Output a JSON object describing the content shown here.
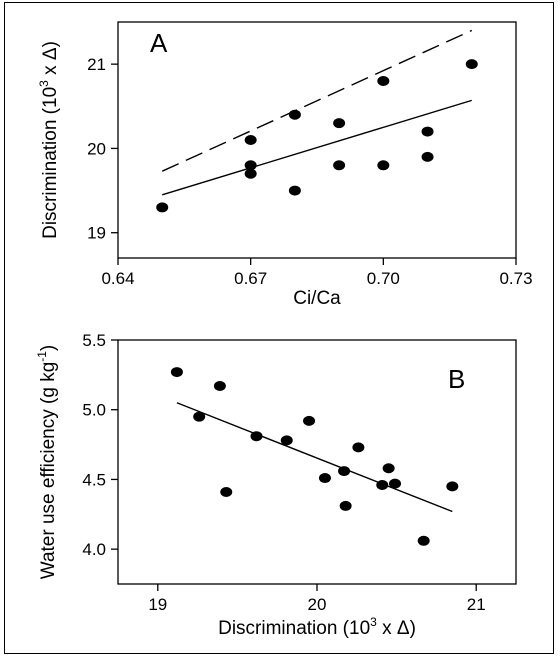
{
  "chart_data": [
    {
      "type": "scatter",
      "panel_label": "A",
      "xlabel": "Ci/Ca",
      "ylabel": "Discrimination (10",
      "ylabel_sup": "3",
      "ylabel_tail": " x Δ)",
      "xlim": [
        0.64,
        0.73
      ],
      "ylim": [
        18.7,
        21.5
      ],
      "xticks": [
        0.64,
        0.67,
        0.7,
        0.73
      ],
      "xtick_labels": [
        "0.64",
        "0.67",
        "0.70",
        "0.73"
      ],
      "yticks": [
        19,
        20,
        21
      ],
      "ytick_labels": [
        "19",
        "20",
        "21"
      ],
      "grid": false,
      "points": [
        {
          "x": 0.65,
          "y": 19.3
        },
        {
          "x": 0.67,
          "y": 20.1
        },
        {
          "x": 0.67,
          "y": 19.8
        },
        {
          "x": 0.67,
          "y": 19.7
        },
        {
          "x": 0.68,
          "y": 20.4
        },
        {
          "x": 0.68,
          "y": 19.5
        },
        {
          "x": 0.69,
          "y": 20.3
        },
        {
          "x": 0.69,
          "y": 19.8
        },
        {
          "x": 0.7,
          "y": 20.8
        },
        {
          "x": 0.7,
          "y": 19.8
        },
        {
          "x": 0.71,
          "y": 20.2
        },
        {
          "x": 0.71,
          "y": 19.9
        },
        {
          "x": 0.72,
          "y": 21.0
        }
      ],
      "lines": [
        {
          "style": "solid",
          "x": [
            0.65,
            0.72
          ],
          "y": [
            19.45,
            20.57
          ]
        },
        {
          "style": "dashed",
          "x": [
            0.65,
            0.72
          ],
          "y": [
            19.73,
            21.4
          ]
        }
      ]
    },
    {
      "type": "scatter",
      "panel_label": "B",
      "xlabel": "Discrimination (10",
      "xlabel_sup": "3",
      "xlabel_tail": " x Δ)",
      "ylabel": "Water use efficiency (g kg",
      "ylabel_sup": "-1",
      "ylabel_tail": ")",
      "xlim": [
        18.75,
        21.25
      ],
      "ylim": [
        3.75,
        5.5
      ],
      "xticks": [
        19,
        20,
        21
      ],
      "xtick_labels": [
        "19",
        "20",
        "21"
      ],
      "yticks": [
        4.0,
        4.5,
        5.0,
        5.5
      ],
      "ytick_labels": [
        "4.0",
        "4.5",
        "5.0",
        "5.5"
      ],
      "grid": false,
      "points": [
        {
          "x": 19.12,
          "y": 5.27
        },
        {
          "x": 19.26,
          "y": 4.95
        },
        {
          "x": 19.39,
          "y": 5.17
        },
        {
          "x": 19.43,
          "y": 4.41
        },
        {
          "x": 19.62,
          "y": 4.81
        },
        {
          "x": 19.81,
          "y": 4.78
        },
        {
          "x": 19.95,
          "y": 4.92
        },
        {
          "x": 20.05,
          "y": 4.51
        },
        {
          "x": 20.17,
          "y": 4.56
        },
        {
          "x": 20.18,
          "y": 4.31
        },
        {
          "x": 20.26,
          "y": 4.73
        },
        {
          "x": 20.41,
          "y": 4.46
        },
        {
          "x": 20.45,
          "y": 4.58
        },
        {
          "x": 20.49,
          "y": 4.47
        },
        {
          "x": 20.67,
          "y": 4.06
        },
        {
          "x": 20.85,
          "y": 4.45
        }
      ],
      "lines": [
        {
          "style": "solid",
          "x": [
            19.12,
            20.85
          ],
          "y": [
            5.05,
            4.27
          ]
        }
      ]
    }
  ]
}
